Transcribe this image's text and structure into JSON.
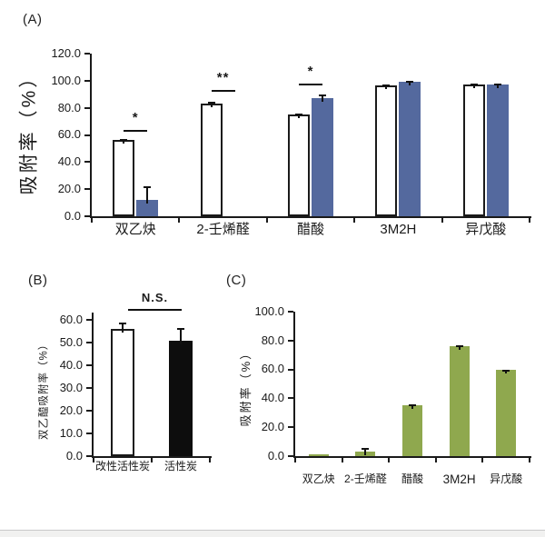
{
  "panels": {
    "a": {
      "label": "(A)",
      "chart_data": {
        "type": "bar",
        "title": "",
        "ylabel": "吸附率（%）",
        "xlabel": "",
        "ylim": [
          0,
          120
        ],
        "yticks": [
          0,
          20,
          40,
          60,
          80,
          100,
          120
        ],
        "ytick_labels": [
          "0.0",
          "20.0",
          "40.0",
          "60.0",
          "80.0",
          "100.0",
          "120.0"
        ],
        "categories": [
          "双乙炔",
          "2-壬烯醛",
          "醋酸",
          "3M2H",
          "异戊酸"
        ],
        "series": [
          {
            "name": "white-bar-series",
            "color": "#ffffff",
            "border": "#1a1a1a",
            "values": [
              56,
              83,
              75,
              96.5,
              97.5
            ],
            "errors": [
              1,
              1.5,
              1,
              1,
              0.5
            ]
          },
          {
            "name": "blue-bar-series",
            "color": "#54699e",
            "border": "#54699e",
            "values": [
              12,
              0,
              87,
              99,
              97
            ],
            "errors": [
              10,
              0,
              3,
              1,
              0.8
            ]
          }
        ],
        "significance": [
          {
            "group": 0,
            "label": "*",
            "y": 64
          },
          {
            "group": 1,
            "label": "**",
            "y": 93
          },
          {
            "group": 2,
            "label": "*",
            "y": 98
          }
        ],
        "grid": false,
        "legend": "none"
      }
    },
    "b": {
      "label": "(B)",
      "chart_data": {
        "type": "bar",
        "title": "",
        "ylabel": "双乙醯吸附率（%）",
        "xlabel": "",
        "ylim": [
          0,
          60
        ],
        "yticks": [
          0,
          10,
          20,
          30,
          40,
          50,
          60
        ],
        "ytick_labels": [
          "0.0",
          "10.0",
          "20.0",
          "30.0",
          "40.0",
          "50.0",
          "60.0"
        ],
        "categories": [
          "改性活性炭",
          "活性炭"
        ],
        "series": [
          {
            "name": "single-bar-series",
            "colors": [
              "#ffffff",
              "#0d0d0d"
            ],
            "borders": [
              "#1a1a1a",
              "#0d0d0d"
            ],
            "values": [
              56,
              51
            ],
            "errors": [
              3,
              5.5
            ]
          }
        ],
        "significance": [
          {
            "from": 0,
            "to": 1,
            "label": "N.S.",
            "y": 65
          }
        ],
        "grid": false,
        "legend": "none"
      }
    },
    "c": {
      "label": "(C)",
      "chart_data": {
        "type": "bar",
        "title": "",
        "ylabel": "吸附率（%）",
        "xlabel": "",
        "ylim": [
          0,
          100
        ],
        "yticks": [
          0,
          20,
          40,
          60,
          80,
          100
        ],
        "ytick_labels": [
          "0.0",
          "20.0",
          "40.0",
          "60.0",
          "80.0",
          "100.0"
        ],
        "categories": [
          "双乙炔",
          "2-壬烯醛",
          "醋酸",
          "3M2H",
          "异戊酸"
        ],
        "series": [
          {
            "name": "olive-bar-series",
            "color": "#8fa84e",
            "border": "#8fa84e",
            "values": [
              1,
              3,
              35,
              76,
              59.5
            ],
            "errors": [
              0,
              2.5,
              1,
              0.7,
              0.5
            ]
          }
        ],
        "significance": [],
        "grid": false,
        "legend": "none"
      }
    }
  },
  "colors": {
    "axis": "#1a1a1a",
    "blue_bar": "#54699e",
    "olive_bar": "#8fa84e",
    "black_bar": "#0d0d0d",
    "white_bar": "#ffffff",
    "footer_strip": "#f1f1f0",
    "footer_border": "#c9c9c9"
  }
}
